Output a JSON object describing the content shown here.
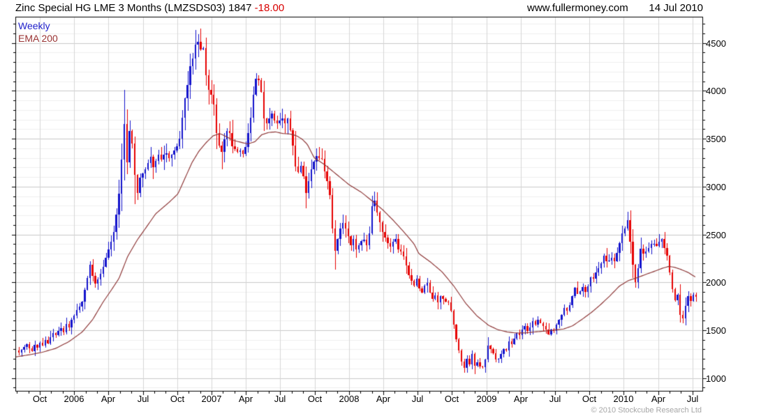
{
  "header": {
    "instrument": "Zinc Special HG LME 3 Months (LMZSDS03)",
    "last_price": "1847",
    "change": "-18.00",
    "website": "www.fullermoney.com",
    "date": "14 Jul 2010"
  },
  "legend": {
    "frequency": "Weekly",
    "overlay": "EMA 200"
  },
  "footer": {
    "copyright": "© 2010 Stockcube Research Ltd"
  },
  "chart_data": {
    "type": "candlestick",
    "title": "Zinc Special HG LME 3 Months (LMZSDS03)",
    "frequency": "weekly",
    "last_close": 1847,
    "change": -18.0,
    "x_axis": {
      "tick_labels": [
        "Oct",
        "2006",
        "Apr",
        "Jul",
        "Oct",
        "2007",
        "Apr",
        "Jul",
        "Oct",
        "2008",
        "Apr",
        "Jul",
        "Oct",
        "2009",
        "Apr",
        "Jul",
        "Oct",
        "2010",
        "Apr",
        "Jul"
      ]
    },
    "y_axis": {
      "tick_labels": [
        1000,
        1500,
        2000,
        2500,
        3000,
        3500,
        4000,
        4500
      ],
      "minor_step": 100,
      "major_step": 500,
      "range_top": 4774,
      "range_bottom": 866
    },
    "weekly_close_keypoints": [
      [
        0,
        1265
      ],
      [
        1,
        1292
      ],
      [
        2,
        1322
      ],
      [
        3,
        1352
      ],
      [
        4,
        1308
      ],
      [
        5,
        1283
      ],
      [
        6,
        1348
      ],
      [
        7,
        1320
      ],
      [
        8,
        1370
      ],
      [
        9,
        1342
      ],
      [
        10,
        1400
      ],
      [
        11,
        1362
      ],
      [
        12,
        1430
      ],
      [
        13,
        1468
      ],
      [
        14,
        1445
      ],
      [
        15,
        1490
      ],
      [
        16,
        1522
      ],
      [
        17,
        1478
      ],
      [
        18,
        1562
      ],
      [
        19,
        1528
      ],
      [
        20,
        1612
      ],
      [
        21,
        1655
      ],
      [
        22,
        1708
      ],
      [
        23,
        1745
      ],
      [
        24,
        1798
      ],
      [
        25,
        1925
      ],
      [
        26,
        2045
      ],
      [
        27,
        2185
      ],
      [
        28,
        2065
      ],
      [
        29,
        1988
      ],
      [
        30,
        2030
      ],
      [
        31,
        2088
      ],
      [
        32,
        2160
      ],
      [
        33,
        2255
      ],
      [
        34,
        2340
      ],
      [
        35,
        2425
      ],
      [
        36,
        2525
      ],
      [
        37,
        2705
      ],
      [
        38,
        2925
      ],
      [
        39,
        3285
      ],
      [
        40,
        3655
      ],
      [
        41,
        3250
      ],
      [
        42,
        3580
      ],
      [
        43,
        3450
      ],
      [
        44,
        3120
      ],
      [
        45,
        2930
      ],
      [
        46,
        3090
      ],
      [
        48,
        3180
      ],
      [
        50,
        3310
      ],
      [
        51,
        3200
      ],
      [
        52,
        3270
      ],
      [
        53,
        3330
      ],
      [
        54,
        3280
      ],
      [
        55,
        3330
      ],
      [
        56,
        3350
      ],
      [
        57,
        3300
      ],
      [
        58,
        3330
      ],
      [
        59,
        3380
      ],
      [
        60,
        3420
      ],
      [
        61,
        3500
      ],
      [
        62,
        3720
      ],
      [
        63,
        3920
      ],
      [
        64,
        4060
      ],
      [
        65,
        4260
      ],
      [
        66,
        4340
      ],
      [
        67,
        4480
      ],
      [
        68,
        4510
      ],
      [
        69,
        4430
      ],
      [
        70,
        4450
      ],
      [
        71,
        4160
      ],
      [
        72,
        4010
      ],
      [
        73,
        3960
      ],
      [
        74,
        3860
      ],
      [
        75,
        3560
      ],
      [
        76,
        3430
      ],
      [
        77,
        3360
      ],
      [
        78,
        3490
      ],
      [
        79,
        3580
      ],
      [
        80,
        3560
      ],
      [
        81,
        3420
      ],
      [
        82,
        3390
      ],
      [
        83,
        3360
      ],
      [
        84,
        3380
      ],
      [
        85,
        3340
      ],
      [
        86,
        3410
      ],
      [
        87,
        3560
      ],
      [
        88,
        3720
      ],
      [
        89,
        3960
      ],
      [
        90,
        4130
      ],
      [
        91,
        4110
      ],
      [
        92,
        3990
      ],
      [
        93,
        3710
      ],
      [
        94,
        3660
      ],
      [
        95,
        3710
      ],
      [
        96,
        3760
      ],
      [
        97,
        3690
      ],
      [
        98,
        3660
      ],
      [
        99,
        3690
      ],
      [
        100,
        3710
      ],
      [
        101,
        3660
      ],
      [
        102,
        3710
      ],
      [
        103,
        3590
      ],
      [
        104,
        3430
      ],
      [
        105,
        3210
      ],
      [
        106,
        3150
      ],
      [
        107,
        3215
      ],
      [
        108,
        3105
      ],
      [
        109,
        2930
      ],
      [
        110,
        3060
      ],
      [
        111,
        3180
      ],
      [
        112,
        3260
      ],
      [
        113,
        3320
      ],
      [
        114,
        3300
      ],
      [
        115,
        3290
      ],
      [
        116,
        3160
      ],
      [
        117,
        3060
      ],
      [
        118,
        2910
      ],
      [
        119,
        2560
      ],
      [
        120,
        2330
      ],
      [
        121,
        2450
      ],
      [
        122,
        2560
      ],
      [
        123,
        2620
      ],
      [
        124,
        2560
      ],
      [
        125,
        2480
      ],
      [
        126,
        2390
      ],
      [
        127,
        2455
      ],
      [
        128,
        2340
      ],
      [
        129,
        2385
      ],
      [
        130,
        2430
      ],
      [
        131,
        2445
      ],
      [
        132,
        2385
      ],
      [
        133,
        2510
      ],
      [
        134,
        2795
      ],
      [
        135,
        2850
      ],
      [
        136,
        2730
      ],
      [
        137,
        2625
      ],
      [
        138,
        2525
      ],
      [
        139,
        2465
      ],
      [
        140,
        2410
      ],
      [
        141,
        2375
      ],
      [
        142,
        2425
      ],
      [
        143,
        2455
      ],
      [
        144,
        2345
      ],
      [
        145,
        2325
      ],
      [
        146,
        2270
      ],
      [
        147,
        2175
      ],
      [
        148,
        2075
      ],
      [
        149,
        2015
      ],
      [
        150,
        1965
      ],
      [
        151,
        2040
      ],
      [
        152,
        1935
      ],
      [
        153,
        1890
      ],
      [
        154,
        1965
      ],
      [
        155,
        1995
      ],
      [
        156,
        1890
      ],
      [
        157,
        1825
      ],
      [
        158,
        1860
      ],
      [
        159,
        1790
      ],
      [
        160,
        1855
      ],
      [
        161,
        1830
      ],
      [
        162,
        1800
      ],
      [
        163,
        1790
      ],
      [
        164,
        1700
      ],
      [
        165,
        1555
      ],
      [
        166,
        1405
      ],
      [
        167,
        1285
      ],
      [
        168,
        1175
      ],
      [
        169,
        1105
      ],
      [
        170,
        1200
      ],
      [
        171,
        1145
      ],
      [
        172,
        1255
      ],
      [
        173,
        1130
      ],
      [
        174,
        1165
      ],
      [
        175,
        1120
      ],
      [
        176,
        1110
      ],
      [
        177,
        1195
      ],
      [
        178,
        1340
      ],
      [
        179,
        1305
      ],
      [
        180,
        1260
      ],
      [
        181,
        1195
      ],
      [
        182,
        1200
      ],
      [
        183,
        1255
      ],
      [
        184,
        1300
      ],
      [
        185,
        1285
      ],
      [
        186,
        1380
      ],
      [
        187,
        1355
      ],
      [
        188,
        1410
      ],
      [
        189,
        1470
      ],
      [
        190,
        1450
      ],
      [
        191,
        1505
      ],
      [
        192,
        1540
      ],
      [
        193,
        1490
      ],
      [
        194,
        1525
      ],
      [
        195,
        1595
      ],
      [
        196,
        1560
      ],
      [
        197,
        1610
      ],
      [
        198,
        1575
      ],
      [
        199,
        1545
      ],
      [
        200,
        1510
      ],
      [
        201,
        1455
      ],
      [
        202,
        1505
      ],
      [
        203,
        1490
      ],
      [
        204,
        1555
      ],
      [
        205,
        1610
      ],
      [
        206,
        1660
      ],
      [
        207,
        1730
      ],
      [
        208,
        1700
      ],
      [
        209,
        1760
      ],
      [
        210,
        1855
      ],
      [
        211,
        1940
      ],
      [
        212,
        1880
      ],
      [
        213,
        1905
      ],
      [
        214,
        1950
      ],
      [
        215,
        1900
      ],
      [
        216,
        1955
      ],
      [
        217,
        2050
      ],
      [
        218,
        2040
      ],
      [
        219,
        2105
      ],
      [
        220,
        2150
      ],
      [
        221,
        2200
      ],
      [
        222,
        2280
      ],
      [
        223,
        2220
      ],
      [
        224,
        2225
      ],
      [
        225,
        2255
      ],
      [
        226,
        2220
      ],
      [
        227,
        2305
      ],
      [
        228,
        2410
      ],
      [
        229,
        2510
      ],
      [
        230,
        2560
      ],
      [
        231,
        2650
      ],
      [
        232,
        2420
      ],
      [
        233,
        2180
      ],
      [
        234,
        2000
      ],
      [
        235,
        2150
      ],
      [
        236,
        2350
      ],
      [
        237,
        2300
      ],
      [
        238,
        2320
      ],
      [
        239,
        2355
      ],
      [
        240,
        2400
      ],
      [
        241,
        2405
      ],
      [
        242,
        2380
      ],
      [
        243,
        2425
      ],
      [
        244,
        2450
      ],
      [
        245,
        2355
      ],
      [
        246,
        2280
      ],
      [
        247,
        2100
      ],
      [
        248,
        1930
      ],
      [
        249,
        1810
      ],
      [
        250,
        1870
      ],
      [
        251,
        1660
      ],
      [
        252,
        1620
      ],
      [
        253,
        1755
      ],
      [
        254,
        1855
      ],
      [
        255,
        1805
      ],
      [
        256,
        1870
      ],
      [
        257,
        1847
      ]
    ],
    "wick_overrides": [
      [
        40,
        4010,
        null
      ],
      [
        44,
        null,
        2820
      ],
      [
        68,
        4592,
        null
      ],
      [
        75,
        null,
        3390
      ],
      [
        77,
        null,
        3180
      ],
      [
        90,
        4185,
        null
      ],
      [
        93,
        null,
        3580
      ],
      [
        97,
        3790,
        null
      ],
      [
        109,
        null,
        2770
      ],
      [
        120,
        null,
        2135
      ],
      [
        134,
        2905,
        null
      ],
      [
        173,
        null,
        1043
      ],
      [
        231,
        2738,
        null
      ],
      [
        234,
        null,
        1946
      ],
      [
        252,
        null,
        1570
      ]
    ],
    "ema200_keypoints": [
      [
        -1.3,
        1220
      ],
      [
        4,
        1243
      ],
      [
        9,
        1270
      ],
      [
        14,
        1310
      ],
      [
        19,
        1380
      ],
      [
        24,
        1480
      ],
      [
        28,
        1610
      ],
      [
        32,
        1795
      ],
      [
        35,
        1915
      ],
      [
        38,
        2040
      ],
      [
        41.3,
        2270
      ],
      [
        45,
        2445
      ],
      [
        48.5,
        2580
      ],
      [
        51.9,
        2715
      ],
      [
        57.2,
        2840
      ],
      [
        60.4,
        2925
      ],
      [
        63.1,
        3090
      ],
      [
        65.7,
        3250
      ],
      [
        68.4,
        3372
      ],
      [
        71,
        3457
      ],
      [
        73.7,
        3530
      ],
      [
        76.3,
        3554
      ],
      [
        79,
        3518
      ],
      [
        81.6,
        3481
      ],
      [
        86.9,
        3445
      ],
      [
        89.6,
        3469
      ],
      [
        92.2,
        3542
      ],
      [
        94.9,
        3566
      ],
      [
        97.5,
        3571
      ],
      [
        100.2,
        3554
      ],
      [
        102.8,
        3550
      ],
      [
        105.5,
        3530
      ],
      [
        107.6,
        3493
      ],
      [
        109.5,
        3440
      ],
      [
        112.1,
        3300
      ],
      [
        116,
        3230
      ],
      [
        120,
        3140
      ],
      [
        125.3,
        3020
      ],
      [
        130,
        2940
      ],
      [
        134.1,
        2850
      ],
      [
        138,
        2760
      ],
      [
        142,
        2650
      ],
      [
        146,
        2530
      ],
      [
        150,
        2400
      ],
      [
        151.8,
        2300
      ],
      [
        156.3,
        2210
      ],
      [
        160.6,
        2110
      ],
      [
        165.1,
        1960
      ],
      [
        169.6,
        1780
      ],
      [
        173.8,
        1650
      ],
      [
        178.3,
        1550
      ],
      [
        181.8,
        1505
      ],
      [
        185.5,
        1480
      ],
      [
        188.9,
        1470
      ],
      [
        192.4,
        1472
      ],
      [
        196.1,
        1482
      ],
      [
        199.5,
        1490
      ],
      [
        203,
        1500
      ],
      [
        206.7,
        1512
      ],
      [
        210.1,
        1545
      ],
      [
        213.6,
        1610
      ],
      [
        217.3,
        1685
      ],
      [
        220.7,
        1765
      ],
      [
        224.2,
        1855
      ],
      [
        227.9,
        1960
      ],
      [
        231.3,
        2018
      ],
      [
        234.8,
        2050
      ],
      [
        238.5,
        2088
      ],
      [
        241.9,
        2122
      ],
      [
        244.6,
        2150
      ],
      [
        246.7,
        2166
      ],
      [
        248.8,
        2157
      ],
      [
        251.2,
        2135
      ],
      [
        253.9,
        2104
      ],
      [
        256,
        2068
      ],
      [
        257,
        2052
      ]
    ],
    "colors": {
      "up": "#1212cc",
      "down": "#e60000",
      "ema": "#8b3232",
      "grid_minor": "#f0f0f0",
      "grid_major": "#c9c9c9",
      "grid_vertical": "#d6d6d6",
      "border": "#000000"
    }
  }
}
